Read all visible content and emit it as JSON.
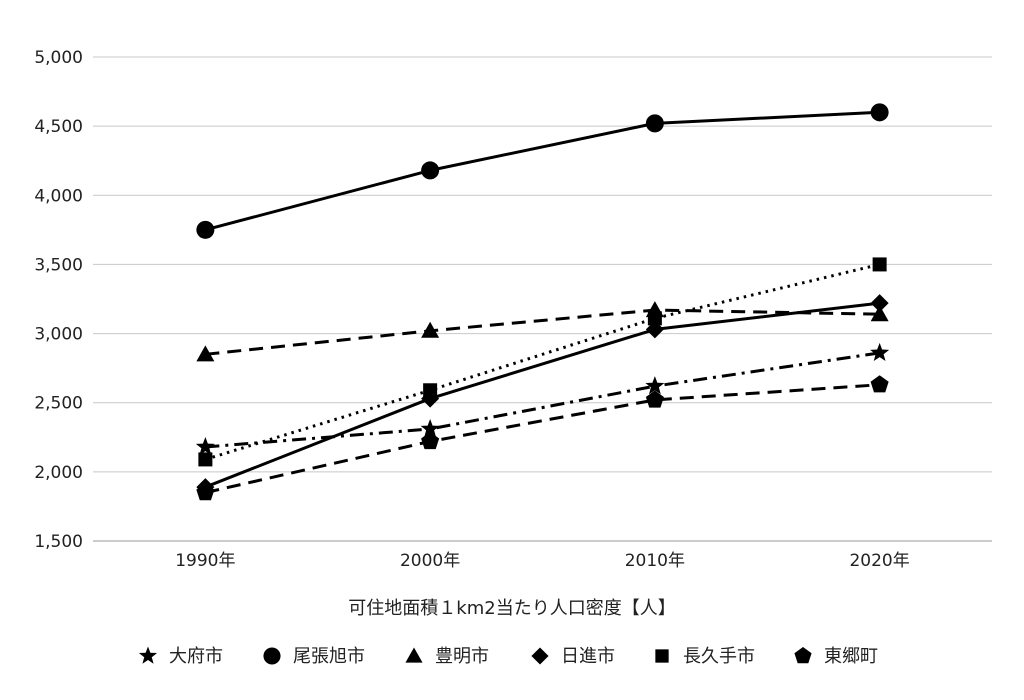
{
  "chart_data": {
    "type": "line",
    "categories": [
      "1990年",
      "2000年",
      "2010年",
      "2020年"
    ],
    "xlabel": "可住地面積１km2当たり人口密度【人】",
    "ylabel": "",
    "ylim": [
      1500,
      5000
    ],
    "yticks": [
      1500,
      2000,
      2500,
      3000,
      3500,
      4000,
      4500,
      5000
    ],
    "ytick_labels": [
      "1,500",
      "2,000",
      "2,500",
      "3,000",
      "3,500",
      "4,000",
      "4,500",
      "5,000"
    ],
    "grid": true,
    "legend_position": "bottom",
    "series": [
      {
        "name": "大府市",
        "values": [
          2180,
          2310,
          2620,
          2860
        ],
        "marker": "star",
        "line_style": "dashdot",
        "color": "#000000"
      },
      {
        "name": "尾張旭市",
        "values": [
          3750,
          4180,
          4520,
          4600
        ],
        "marker": "circle",
        "line_style": "solid",
        "color": "#000000"
      },
      {
        "name": "豊明市",
        "values": [
          2850,
          3020,
          3170,
          3140
        ],
        "marker": "triangle",
        "line_style": "dashed",
        "color": "#000000"
      },
      {
        "name": "日進市",
        "values": [
          1890,
          2530,
          3030,
          3220
        ],
        "marker": "diamond",
        "line_style": "solid",
        "color": "#000000"
      },
      {
        "name": "長久手市",
        "values": [
          2090,
          2590,
          3110,
          3500
        ],
        "marker": "square",
        "line_style": "dotted",
        "color": "#000000"
      },
      {
        "name": "東郷町",
        "values": [
          1850,
          2220,
          2520,
          2630
        ],
        "marker": "pentagon",
        "line_style": "dashed",
        "color": "#000000"
      }
    ]
  }
}
